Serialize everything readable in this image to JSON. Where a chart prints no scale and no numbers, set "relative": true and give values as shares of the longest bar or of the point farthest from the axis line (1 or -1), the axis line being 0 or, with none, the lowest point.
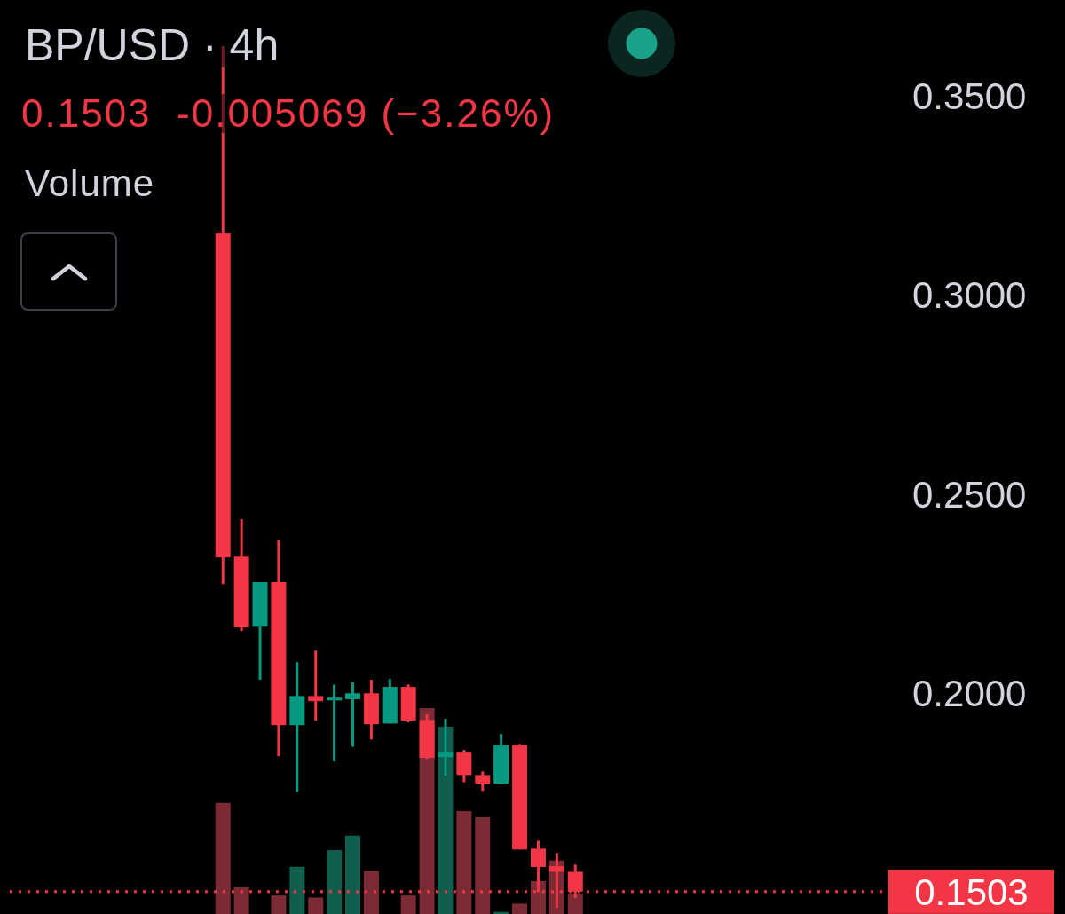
{
  "chart_data": [
    {
      "type": "candlestick",
      "title": "BP/USD · 4h",
      "subtitle": "0.1503  -0.005069 (−3.26%)",
      "categories": [
        null,
        null,
        null,
        null,
        null,
        null,
        null,
        null,
        null,
        null,
        null,
        null,
        null,
        null,
        null,
        null,
        null,
        null,
        null,
        null,
        null,
        null,
        null,
        null,
        null,
        null,
        null,
        null,
        null,
        null,
        null,
        null,
        null,
        null,
        null,
        null,
        null,
        null,
        null,
        null,
        null,
        null,
        null,
        null,
        null,
        null,
        null,
        null
      ],
      "ohlc": [
        null,
        null,
        null,
        null,
        null,
        null,
        null,
        null,
        null,
        null,
        null,
        [
          0.3155,
          0.3625,
          0.2275,
          0.2342
        ],
        [
          0.2344,
          0.2438,
          0.2157,
          0.2166
        ],
        [
          0.2168,
          0.228,
          0.2035,
          0.228
        ],
        [
          0.228,
          0.2386,
          0.1843,
          0.1921
        ],
        [
          0.1921,
          0.2079,
          0.1754,
          0.1994
        ],
        [
          0.1994,
          0.2108,
          0.1932,
          0.1981
        ],
        [
          0.1983,
          0.2023,
          0.183,
          0.199
        ],
        [
          0.1986,
          0.203,
          0.1867,
          0.2001
        ],
        [
          0.2001,
          0.2035,
          0.1885,
          0.1923
        ],
        [
          0.1925,
          0.2037,
          0.1925,
          0.2017
        ],
        [
          0.2017,
          0.2023,
          0.1928,
          0.1932
        ],
        [
          0.1934,
          0.1948,
          0.1836,
          0.1839
        ],
        [
          0.1841,
          0.1937,
          0.1794,
          0.1852
        ],
        [
          0.1852,
          0.1859,
          0.1778,
          0.1796
        ],
        [
          0.1796,
          0.1805,
          0.1756,
          0.1774
        ],
        [
          0.1774,
          0.1899,
          0.1774,
          0.187
        ],
        [
          0.187,
          0.1874,
          0.1609,
          0.1609
        ],
        [
          0.1611,
          0.1631,
          0.1502,
          0.1565
        ],
        [
          0.1567,
          0.16,
          0.1462,
          0.1553
        ],
        [
          0.1553,
          0.1571,
          0.1487,
          0.1503
        ],
        null,
        null,
        null,
        null,
        null,
        null,
        null,
        null,
        null,
        null,
        null,
        null,
        null,
        null,
        null,
        null,
        null
      ],
      "colors": [
        null,
        null,
        null,
        null,
        null,
        null,
        null,
        null,
        null,
        null,
        null,
        "#f23645",
        "#f23645",
        "#089981",
        "#f23645",
        "#089981",
        "#f23645",
        "#089981",
        "#089981",
        "#f23645",
        "#089981",
        "#f23645",
        "#f23645",
        "#089981",
        "#f23645",
        "#f23645",
        "#089981",
        "#f23645",
        "#f23645",
        "#f23645",
        "#f23645",
        null,
        null,
        null,
        null,
        null,
        null,
        null,
        null,
        null,
        null,
        null,
        null,
        null,
        null,
        null,
        null,
        null
      ],
      "ylim": [
        0.1447,
        0.3741
      ],
      "yticks": [
        {
          "value": 0.2,
          "label": "0.2000"
        },
        {
          "value": 0.25,
          "label": "0.2500"
        },
        {
          "value": 0.3,
          "label": "0.3000"
        },
        {
          "value": 0.35,
          "label": "0.3500"
        }
      ],
      "ref_lines": [
        {
          "axis": "y",
          "value": 0.1503,
          "label": "0.1503",
          "color": "#f23645",
          "line_style": "dotted"
        }
      ]
    },
    {
      "type": "bar",
      "title": "Volume",
      "relative": true,
      "categories": [
        null,
        null,
        null,
        null,
        null,
        null,
        null,
        null,
        null,
        null,
        null,
        null,
        null,
        null,
        null,
        null,
        null,
        null,
        null,
        null,
        null,
        null,
        null,
        null,
        null,
        null,
        null,
        null,
        null,
        null,
        null,
        null,
        null,
        null,
        null,
        null,
        null,
        null,
        null,
        null,
        null,
        null,
        null,
        null,
        null,
        null,
        null,
        null
      ],
      "values": [
        null,
        null,
        null,
        null,
        null,
        null,
        null,
        null,
        null,
        null,
        null,
        0.54,
        0.13,
        0,
        0.09,
        0.23,
        0.08,
        0.31,
        0.38,
        0.21,
        0,
        0.09,
        1,
        0.91,
        0.5,
        0.47,
        0.01,
        0.05,
        0.16,
        0.26,
        0.1,
        null,
        null,
        null,
        null,
        null,
        null,
        null,
        null,
        null,
        null,
        null,
        null,
        null,
        null,
        null,
        null,
        null
      ],
      "colors": [
        null,
        null,
        null,
        null,
        null,
        null,
        null,
        null,
        null,
        null,
        null,
        "#7c2b35",
        "#7c2b35",
        "#0f5e4e",
        "#7c2b35",
        "#0f5e4e",
        "#7c2b35",
        "#0f5e4e",
        "#0f5e4e",
        "#7c2b35",
        "#0f5e4e",
        "#7c2b35",
        "#7c2b35",
        "#0f5e4e",
        "#7c2b35",
        "#7c2b35",
        "#0f5e4e",
        "#7c2b35",
        "#7c2b35",
        "#7c2b35",
        "#7c2b35",
        null,
        null,
        null,
        null,
        null,
        null,
        null,
        null,
        null,
        null,
        null,
        null,
        null,
        null,
        null,
        null,
        null
      ]
    }
  ]
}
